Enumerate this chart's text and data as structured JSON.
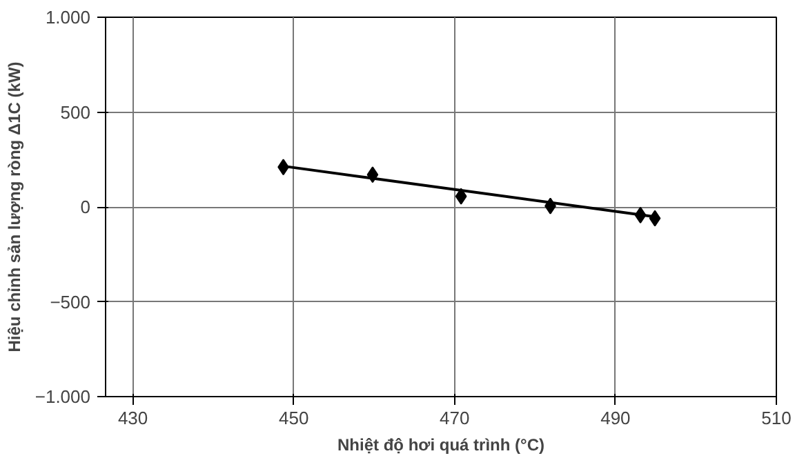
{
  "chart_data": {
    "type": "scatter",
    "xlabel": "Nhiệt độ hơi quá trình (°C)",
    "ylabel": "Hiệu chỉnh sản lượng ròng Δ1C (kW)",
    "series": [
      {
        "color": "#000000",
        "marker": "diamond",
        "x": [
          448.7,
          459.8,
          470.8,
          481.9,
          493.1,
          494.9
        ],
        "values": [
          210,
          170,
          56,
          5,
          -43,
          -60
        ]
      },
      {
        "type": "line",
        "color": "#000000",
        "x": [
          448.7,
          494.9
        ],
        "values": [
          215,
          -52
        ]
      }
    ],
    "xlim": [
      426.6,
      510
    ],
    "xticks": [
      430,
      450,
      470,
      490,
      510
    ],
    "ylim": [
      -1000,
      1000
    ],
    "yticks": [
      {
        "value": -1000,
        "label": "−1.000"
      },
      {
        "value": -500,
        "label": "−500"
      },
      0,
      500,
      {
        "value": 1000,
        "label": "1.000"
      }
    ],
    "grid": true,
    "line_style": "solid"
  }
}
